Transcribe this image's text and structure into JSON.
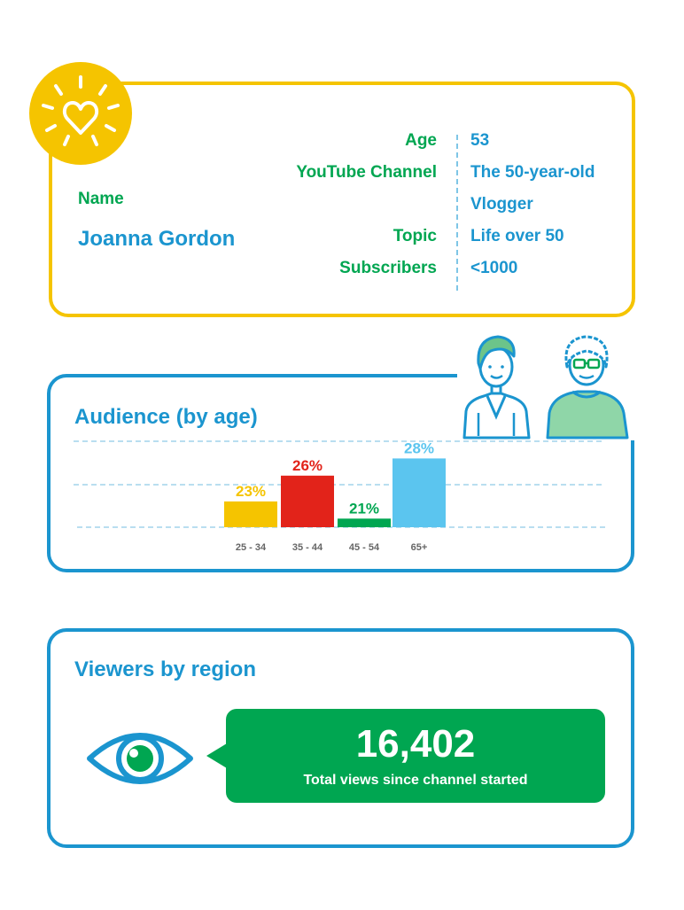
{
  "profile": {
    "name_label": "Name",
    "name_value": "Joanna Gordon",
    "age_label": "Age",
    "age_value": "53",
    "channel_label": "YouTube Channel",
    "channel_value_line1": "The 50-year-old",
    "channel_value_line2": "Vlogger",
    "topic_label": "Topic",
    "topic_value": "Life over 50",
    "subscribers_label": "Subscribers",
    "subscribers_value": "<1000",
    "icon": "heart-sun-icon"
  },
  "audience": {
    "title": "Audience (by age)",
    "illustration": "two-women-illustration"
  },
  "chart_data": {
    "type": "bar",
    "categories": [
      "25 - 34",
      "35 - 44",
      "45 - 54",
      "65+"
    ],
    "values": [
      23,
      26,
      21,
      28
    ],
    "value_labels": [
      "23%",
      "26%",
      "21%",
      "28%"
    ],
    "colors": [
      "#f5c400",
      "#e2231a",
      "#00a651",
      "#5bc5ef"
    ],
    "ylim": [
      20,
      30
    ],
    "grid": true
  },
  "region": {
    "title": "Viewers by region",
    "total_views": "16,402",
    "total_views_caption": "Total views since channel started",
    "icon": "eye-icon"
  },
  "colors": {
    "yellow": "#f5c400",
    "blue": "#1b95cf",
    "green": "#00a651",
    "red": "#e2231a",
    "light_blue": "#5bc5ef"
  }
}
